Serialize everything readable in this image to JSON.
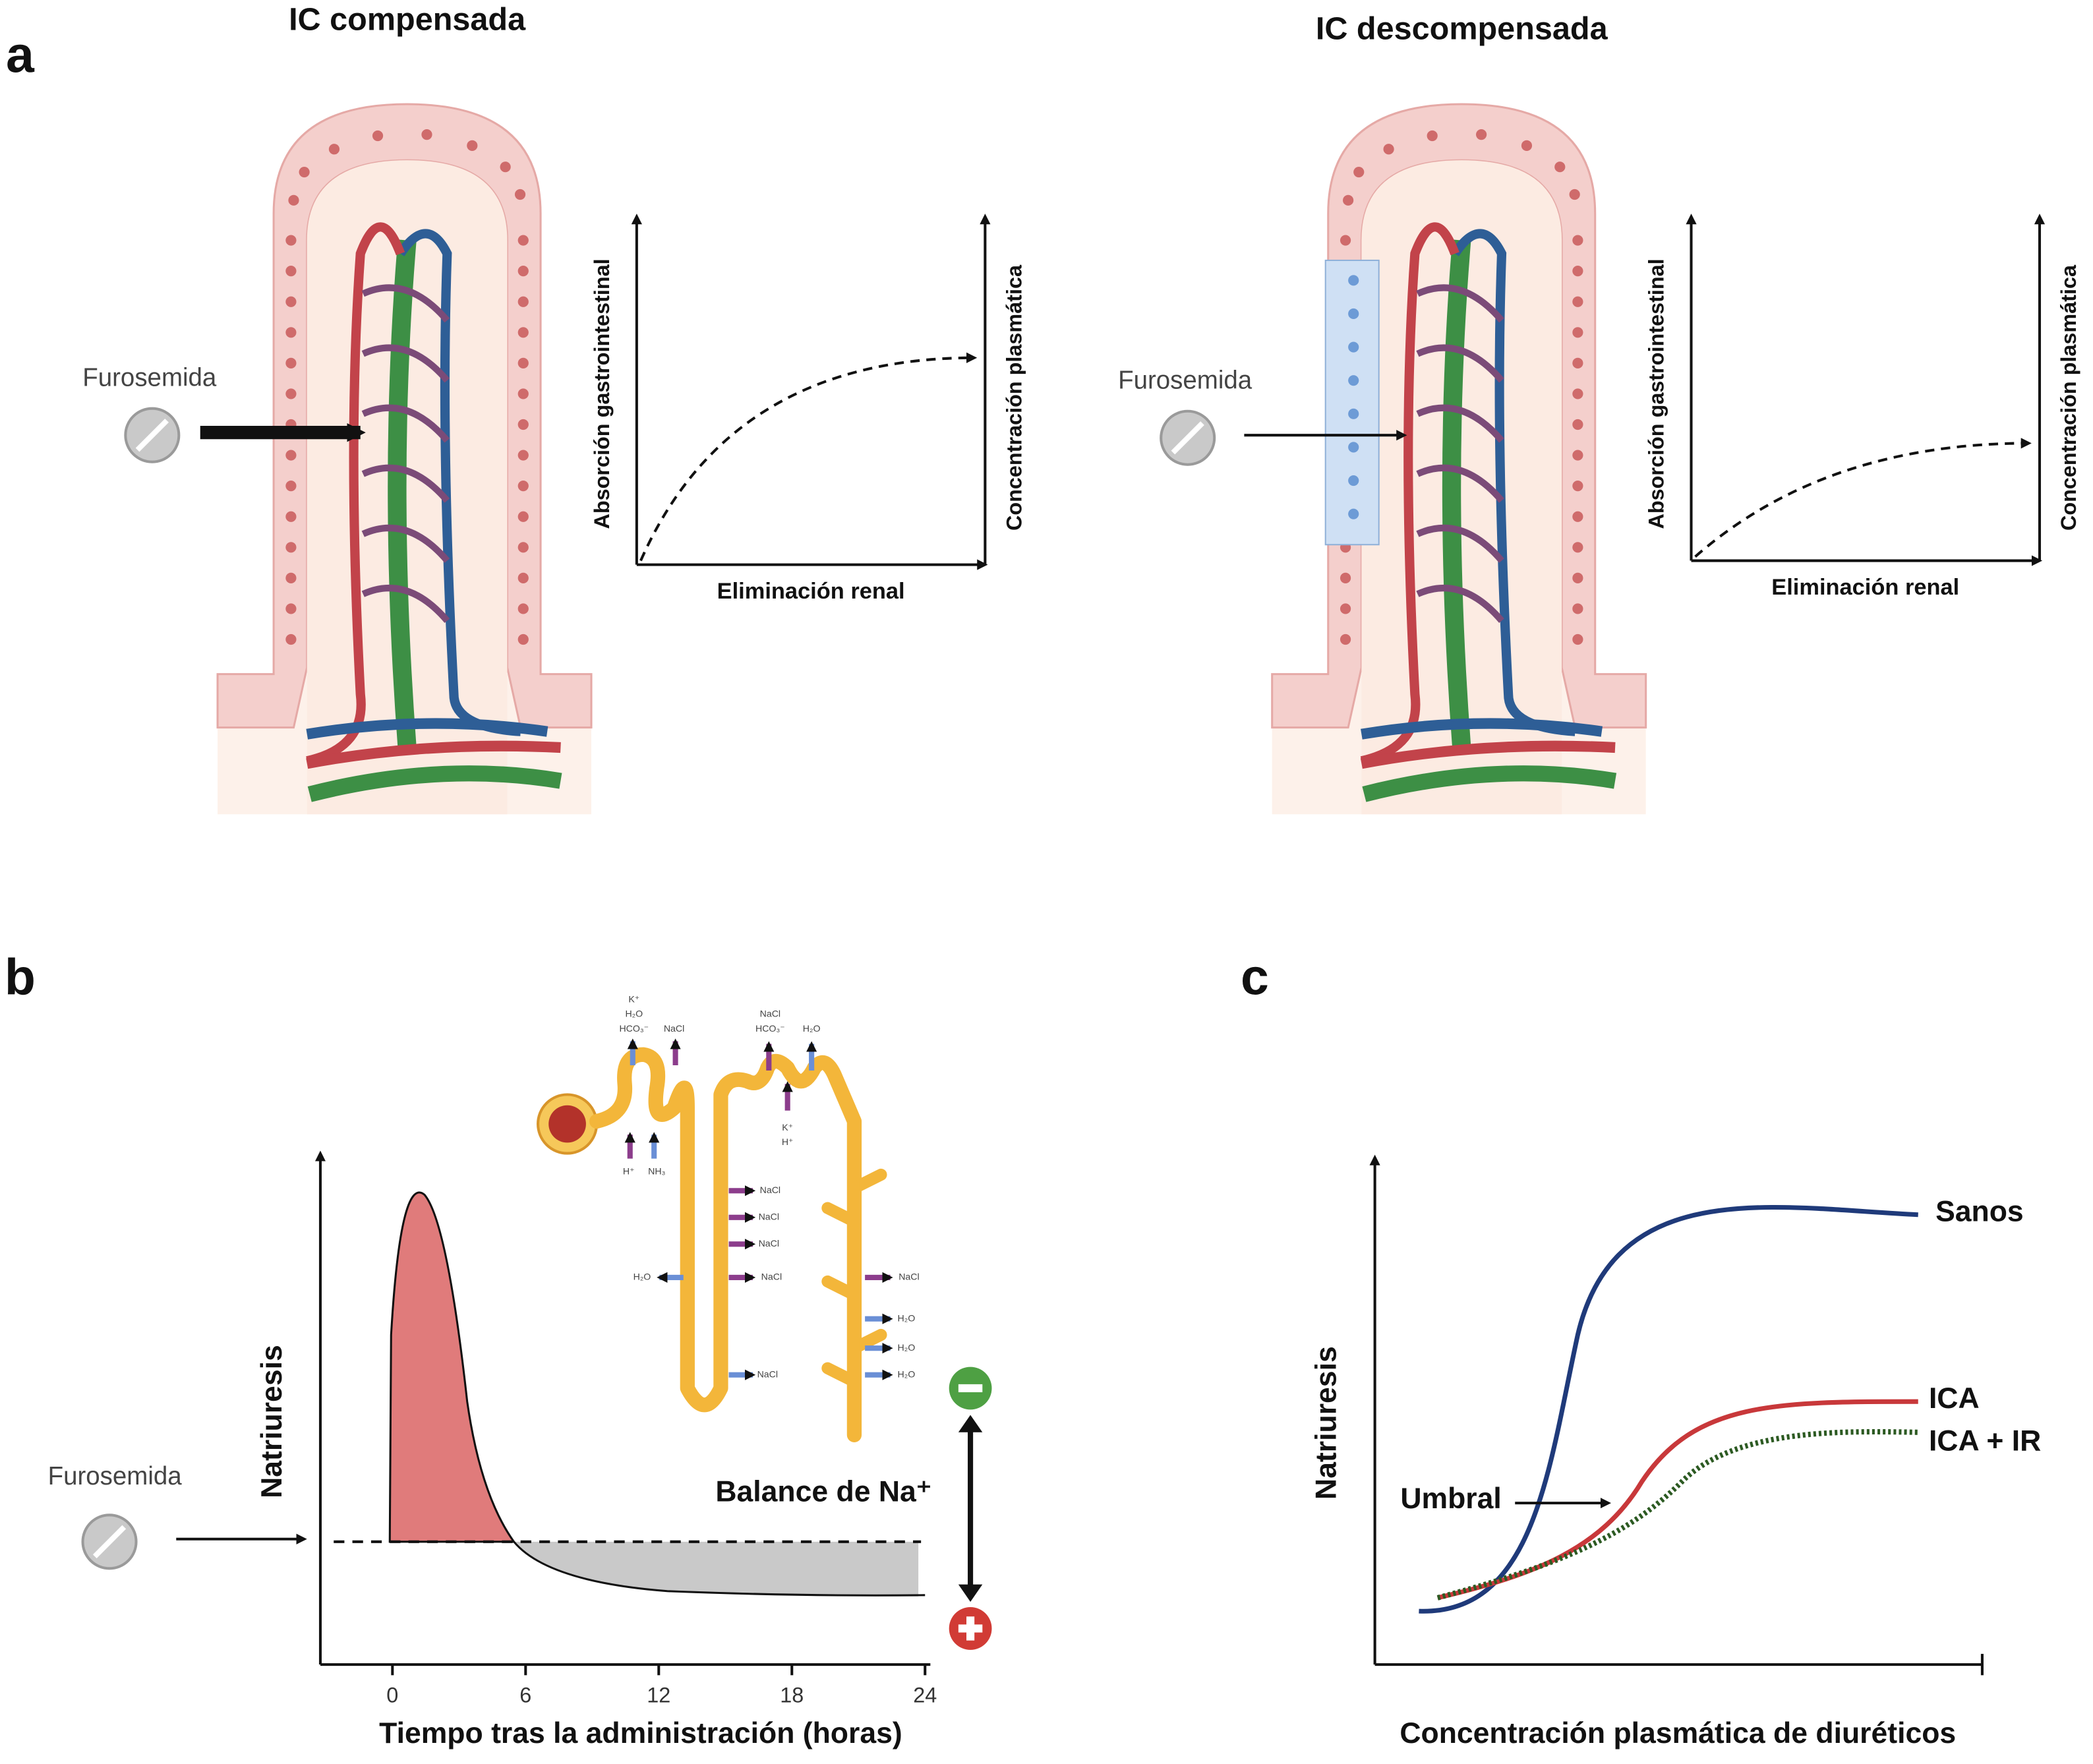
{
  "panel_a": {
    "letter": "a",
    "left": {
      "title": "IC compensada",
      "drug": "Furosemida",
      "y_label": "Absorción gastrointestinal",
      "y2_label": "Concentración plasmática",
      "x_label": "Eliminación renal"
    },
    "right": {
      "title": "IC descompensada",
      "drug": "Furosemida",
      "y_label": "Absorción gastrointestinal",
      "y2_label": "Concentración plasmática",
      "x_label": "Eliminación renal"
    }
  },
  "panel_b": {
    "letter": "b",
    "drug": "Furosemida",
    "y_label": "Natriuresis",
    "x_label": "Tiempo tras la administración (horas)",
    "xticks": [
      0,
      6,
      12,
      18,
      24
    ],
    "balance_label": "Balance de Na⁺",
    "nephron_labels": [
      "K⁺",
      "H₂O",
      "HCO₃⁻",
      "NaCl",
      "NaCl",
      "HCO₃⁻",
      "H₂O",
      "K⁺",
      "H⁺",
      "H⁺",
      "NH₃",
      "NaCl",
      "NaCl",
      "NaCl",
      "NaCl",
      "H₂O",
      "NaCl",
      "NaCl",
      "H₂O",
      "H₂O",
      "H₂O"
    ]
  },
  "panel_c": {
    "letter": "c",
    "y_label": "Natriuresis",
    "x_label": "Concentración plasmática de diuréticos",
    "curves": [
      "Sanos",
      "ICA",
      "ICA + IR"
    ],
    "threshold_label": "Umbral"
  }
}
